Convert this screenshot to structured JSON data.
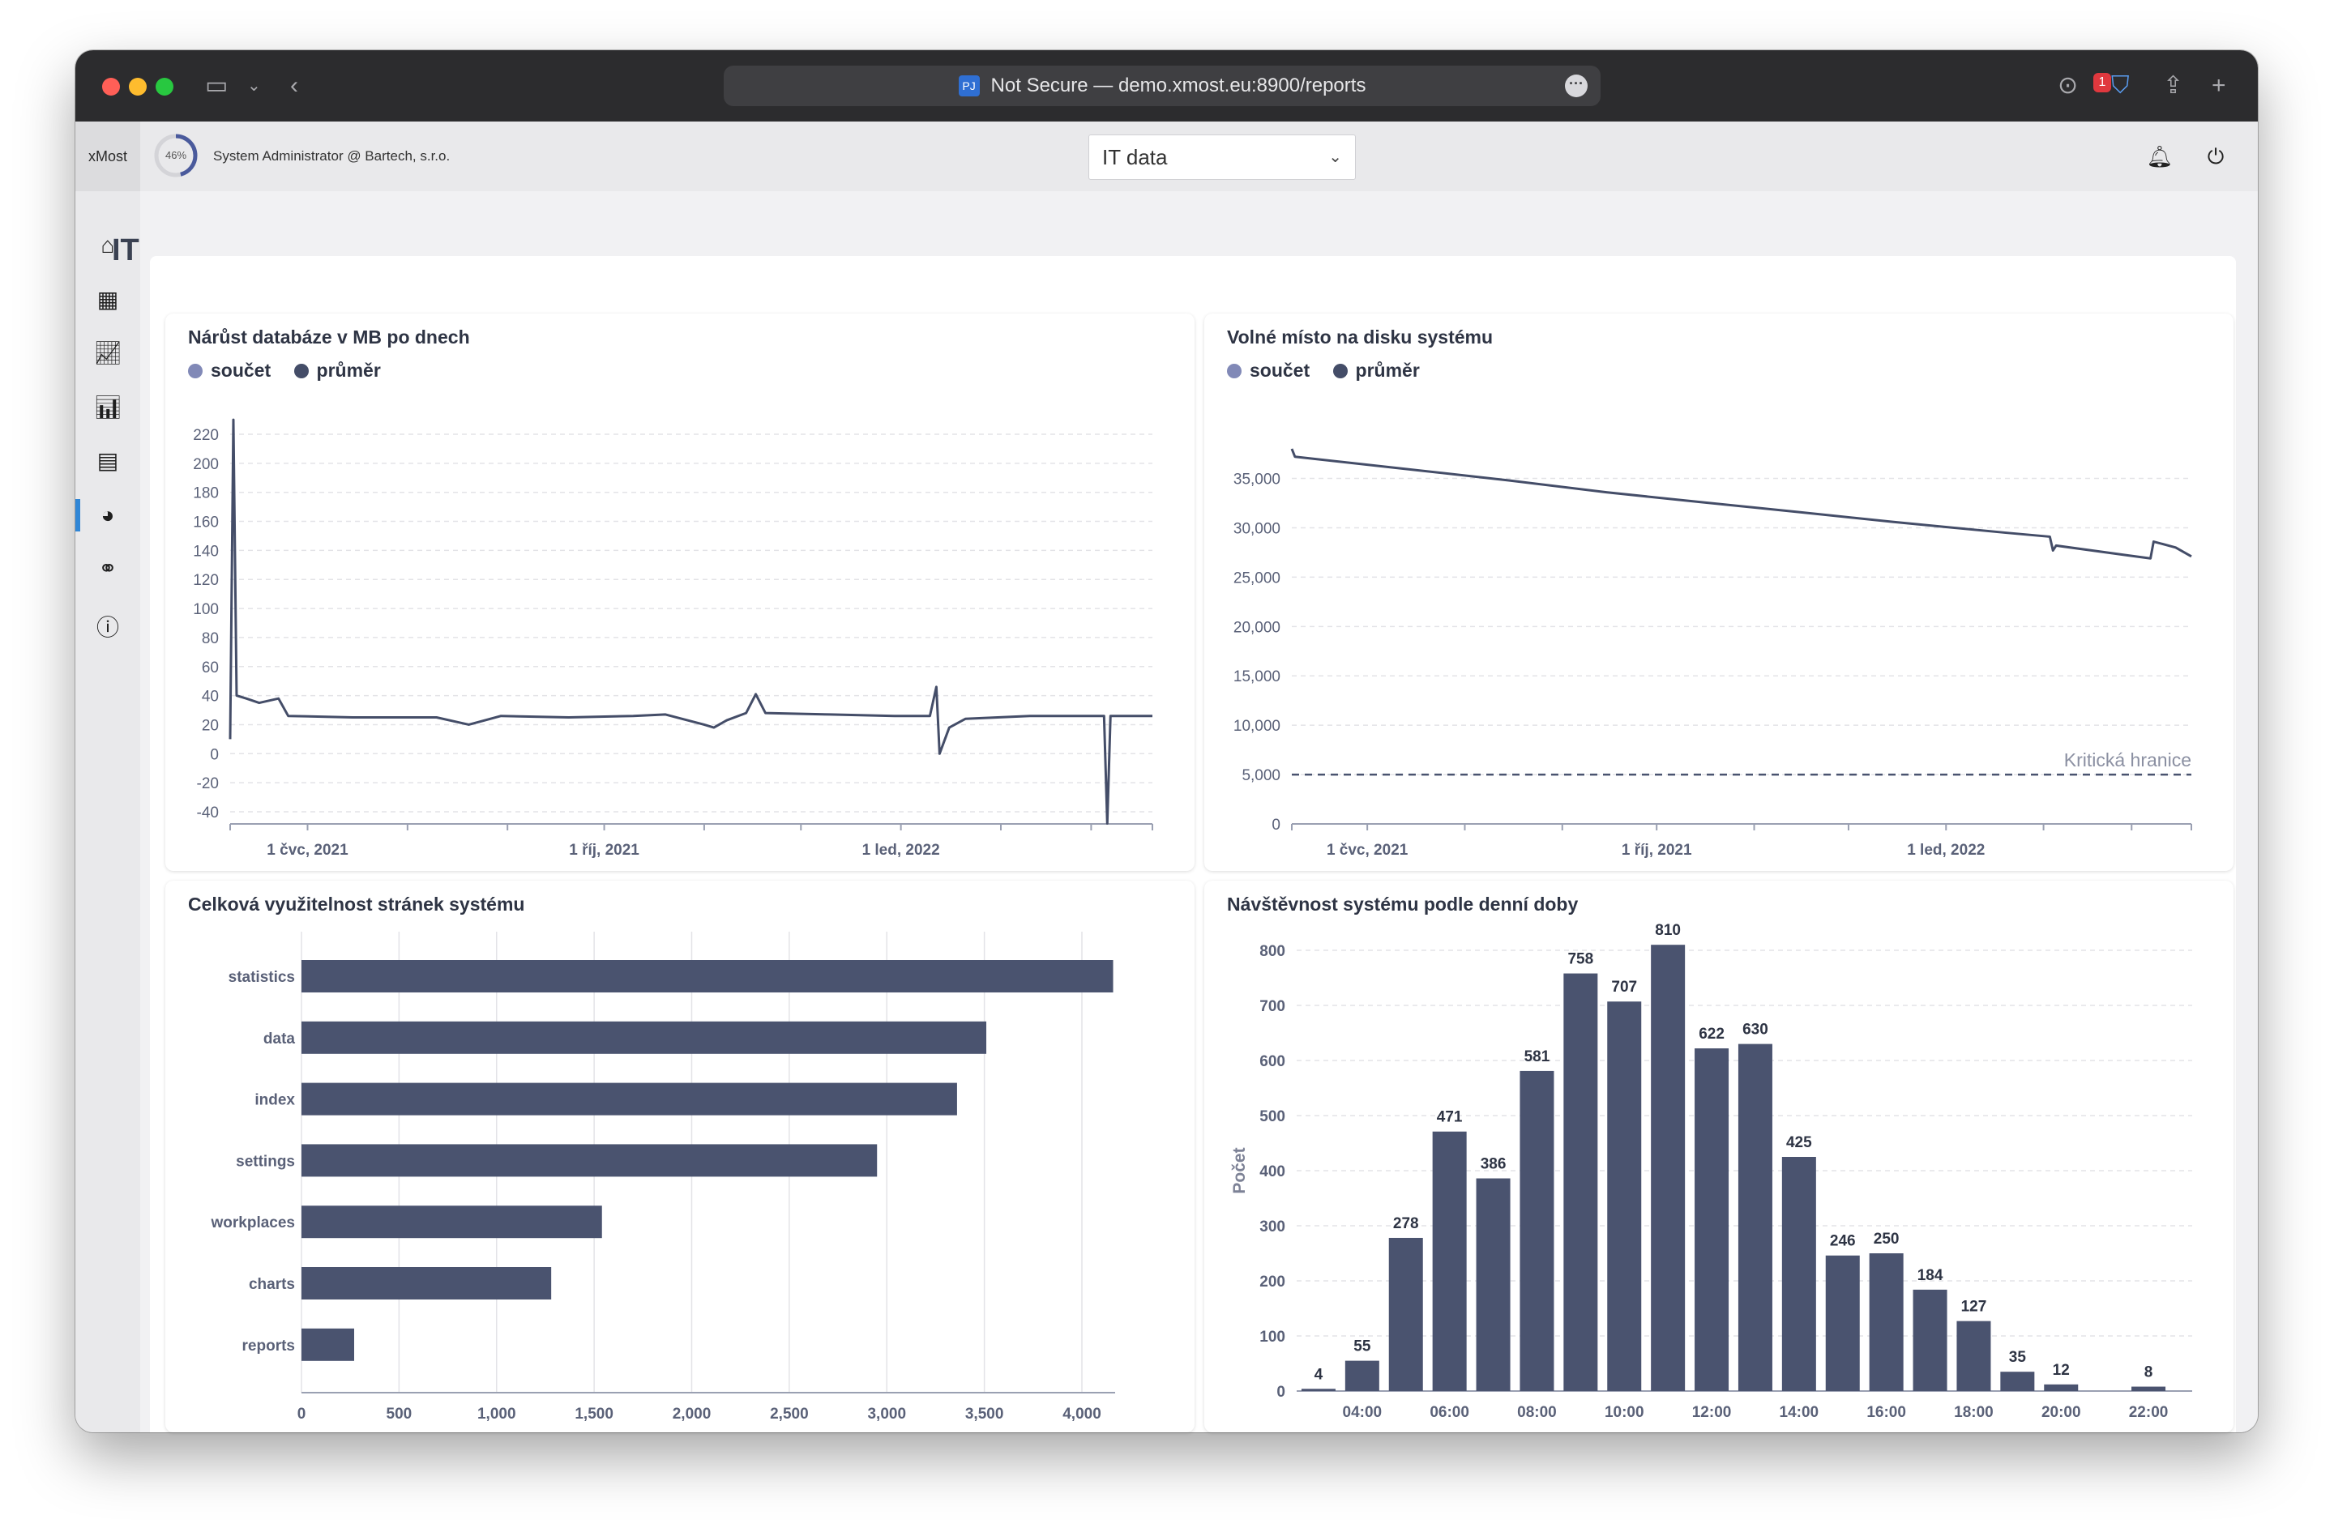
{
  "browser": {
    "url_text": "Not Secure — demo.xmost.eu:8900/reports",
    "favicon_text": "PJ"
  },
  "header": {
    "brand": "xMost",
    "progress_label": "46%",
    "progress_value": 0.46,
    "user": "System Administrator @ Bartech, s.r.o.",
    "dataset_select": "IT data",
    "notification_count": "1"
  },
  "sidebar": {
    "items": [
      "home",
      "dashboard",
      "line-chart",
      "bar-chart",
      "table",
      "pie-chart",
      "workflow",
      "info"
    ],
    "active": "pie-chart"
  },
  "page": {
    "title": "IT"
  },
  "colors": {
    "series_sum": "#8189b7",
    "series_avg": "#444d68",
    "bar": "#4a536f",
    "accent": "#2f86d6"
  },
  "panels": {
    "db_growth": {
      "title": "Nárůst databáze v MB po dnech"
    },
    "disk_space": {
      "title": "Volné místo na disku systému"
    },
    "page_usage": {
      "title": "Celková využitelnost stránek systému"
    },
    "traffic": {
      "title": "Návštěvnost systému podle denní doby"
    }
  },
  "legend": {
    "sum": "součet",
    "avg": "průměr"
  },
  "chart_data": [
    {
      "id": "db_growth",
      "type": "line",
      "title": "Nárůst databáze v MB po dnech",
      "series": [
        {
          "name": "součet"
        },
        {
          "name": "průměr"
        }
      ],
      "y_ticks": [
        "220",
        "200",
        "180",
        "160",
        "140",
        "120",
        "100",
        "80",
        "60",
        "40",
        "20",
        "0",
        "-20",
        "-40"
      ],
      "ylim": [
        -40,
        220
      ],
      "x_ticks": [
        "1 čvc, 2021",
        "1 říj, 2021",
        "1 led, 2022"
      ],
      "x_range": [
        "2021-06-07",
        "2022-03-20"
      ],
      "points": [
        [
          "2021-06-07",
          10
        ],
        [
          "2021-06-08",
          230
        ],
        [
          "2021-06-09",
          40
        ],
        [
          "2021-06-12",
          38
        ],
        [
          "2021-06-16",
          35
        ],
        [
          "2021-06-22",
          38
        ],
        [
          "2021-06-25",
          26
        ],
        [
          "2021-07-15",
          25
        ],
        [
          "2021-08-10",
          25
        ],
        [
          "2021-08-20",
          20
        ],
        [
          "2021-08-30",
          26
        ],
        [
          "2021-09-20",
          25
        ],
        [
          "2021-10-10",
          26
        ],
        [
          "2021-10-20",
          27
        ],
        [
          "2021-11-01",
          20
        ],
        [
          "2021-11-04",
          18
        ],
        [
          "2021-11-08",
          23
        ],
        [
          "2021-11-14",
          28
        ],
        [
          "2021-11-17",
          41
        ],
        [
          "2021-11-20",
          28
        ],
        [
          "2021-12-10",
          27
        ],
        [
          "2021-12-30",
          26
        ],
        [
          "2022-01-10",
          26
        ],
        [
          "2022-01-12",
          46
        ],
        [
          "2022-01-13",
          0
        ],
        [
          "2022-01-16",
          18
        ],
        [
          "2022-01-21",
          24
        ],
        [
          "2022-02-10",
          26
        ],
        [
          "2022-02-20",
          26
        ],
        [
          "2022-03-05",
          26
        ],
        [
          "2022-03-06",
          -48
        ],
        [
          "2022-03-07",
          26
        ],
        [
          "2022-03-20",
          26
        ]
      ]
    },
    {
      "id": "disk_space",
      "type": "line",
      "title": "Volné místo na disku systému",
      "series": [
        {
          "name": "součet"
        },
        {
          "name": "průměr"
        }
      ],
      "y_ticks": [
        "35,000",
        "30,000",
        "25,000",
        "20,000",
        "15,000",
        "10,000",
        "5,000",
        "0"
      ],
      "ylim": [
        0,
        38000
      ],
      "x_ticks": [
        "1 čvc, 2021",
        "1 říj, 2021",
        "1 led, 2022"
      ],
      "x_range": [
        "2021-06-07",
        "2022-03-20"
      ],
      "threshold": {
        "value": 5000,
        "label": "Kritická hranice"
      },
      "points": [
        [
          "2021-06-07",
          38000
        ],
        [
          "2021-06-08",
          37200
        ],
        [
          "2021-07-15",
          35900
        ],
        [
          "2021-08-15",
          34800
        ],
        [
          "2021-09-15",
          33600
        ],
        [
          "2021-10-15",
          32600
        ],
        [
          "2021-11-15",
          31600
        ],
        [
          "2021-12-15",
          30600
        ],
        [
          "2022-01-20",
          29500
        ],
        [
          "2022-02-03",
          29100
        ],
        [
          "2022-02-04",
          27700
        ],
        [
          "2022-02-05",
          28200
        ],
        [
          "2022-02-28",
          27200
        ],
        [
          "2022-03-07",
          26900
        ],
        [
          "2022-03-08",
          28600
        ],
        [
          "2022-03-15",
          28000
        ],
        [
          "2022-03-20",
          27100
        ]
      ]
    },
    {
      "id": "page_usage",
      "type": "bar",
      "orientation": "horizontal",
      "title": "Celková využitelnost stránek systému",
      "categories": [
        "statistics",
        "data",
        "index",
        "settings",
        "workplaces",
        "charts",
        "reports"
      ],
      "values": [
        4160,
        3510,
        3360,
        2950,
        1540,
        1280,
        270
      ],
      "x_ticks": [
        "0",
        "500",
        "1,000",
        "1,500",
        "2,000",
        "2,500",
        "3,000",
        "3,500",
        "4,000"
      ],
      "xlim": [
        0,
        4000
      ]
    },
    {
      "id": "traffic",
      "type": "bar",
      "title": "Návštěvnost systému podle denní doby",
      "ylabel": "Počet",
      "ylim": [
        0,
        800
      ],
      "y_ticks": [
        "0",
        "100",
        "200",
        "300",
        "400",
        "500",
        "600",
        "700",
        "800"
      ],
      "x_ticks": [
        "04:00",
        "06:00",
        "08:00",
        "10:00",
        "12:00",
        "14:00",
        "16:00",
        "18:00",
        "20:00",
        "22:00"
      ],
      "hours": [
        3,
        4,
        5,
        6,
        7,
        8,
        9,
        10,
        11,
        12,
        13,
        14,
        15,
        16,
        17,
        18,
        19,
        20,
        21,
        22
      ],
      "values": [
        4,
        55,
        278,
        471,
        386,
        581,
        758,
        707,
        810,
        622,
        630,
        425,
        246,
        250,
        184,
        127,
        35,
        12,
        0,
        8
      ]
    }
  ]
}
